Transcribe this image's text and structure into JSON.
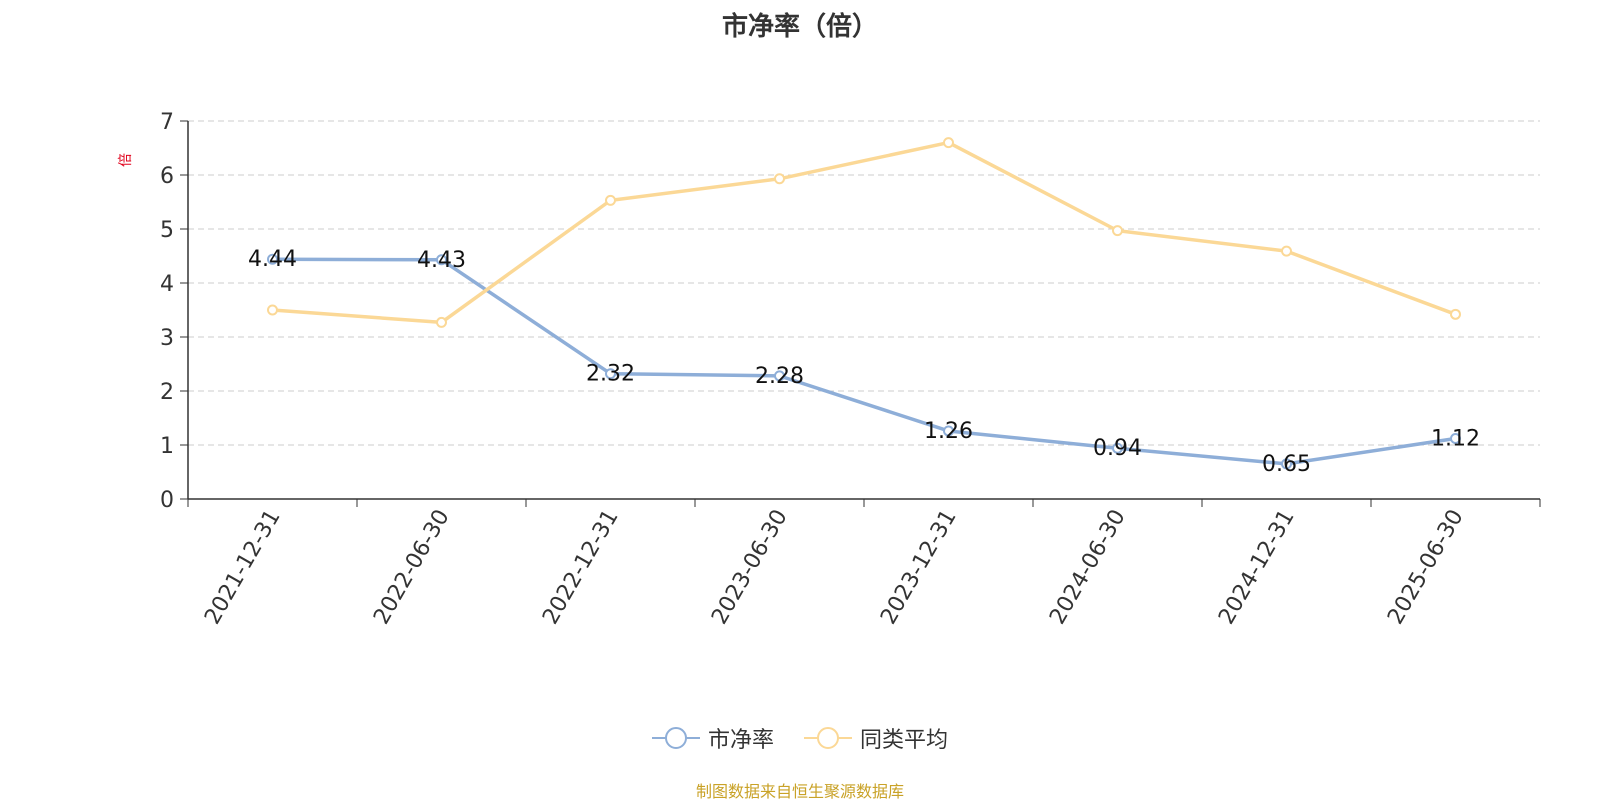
{
  "chart_data": {
    "type": "line",
    "title": "市净率（倍）",
    "ylabel": "倍",
    "xlabel": "",
    "categories": [
      "2021-12-31",
      "2022-06-30",
      "2022-12-31",
      "2023-06-30",
      "2023-12-31",
      "2024-06-30",
      "2024-12-31",
      "2025-06-30"
    ],
    "ylim": [
      0,
      7
    ],
    "yticks": [
      "0",
      "1",
      "2",
      "3",
      "4",
      "5",
      "6",
      "7"
    ],
    "grid": true,
    "legend_position": "bottom-center",
    "series": [
      {
        "name": "市净率",
        "color": "#8eaed8",
        "values": [
          4.44,
          4.43,
          2.32,
          2.28,
          1.26,
          0.94,
          0.65,
          1.12
        ],
        "labels": [
          "4.44",
          "4.43",
          "2.32",
          "2.28",
          "1.26",
          "0.94",
          "0.65",
          "1.12"
        ]
      },
      {
        "name": "同类平均",
        "color": "#fbd896",
        "values": [
          3.5,
          3.27,
          5.53,
          5.93,
          6.6,
          4.97,
          4.59,
          3.42
        ]
      }
    ]
  },
  "footer": {
    "source": "制图数据来自恒生聚源数据库"
  }
}
